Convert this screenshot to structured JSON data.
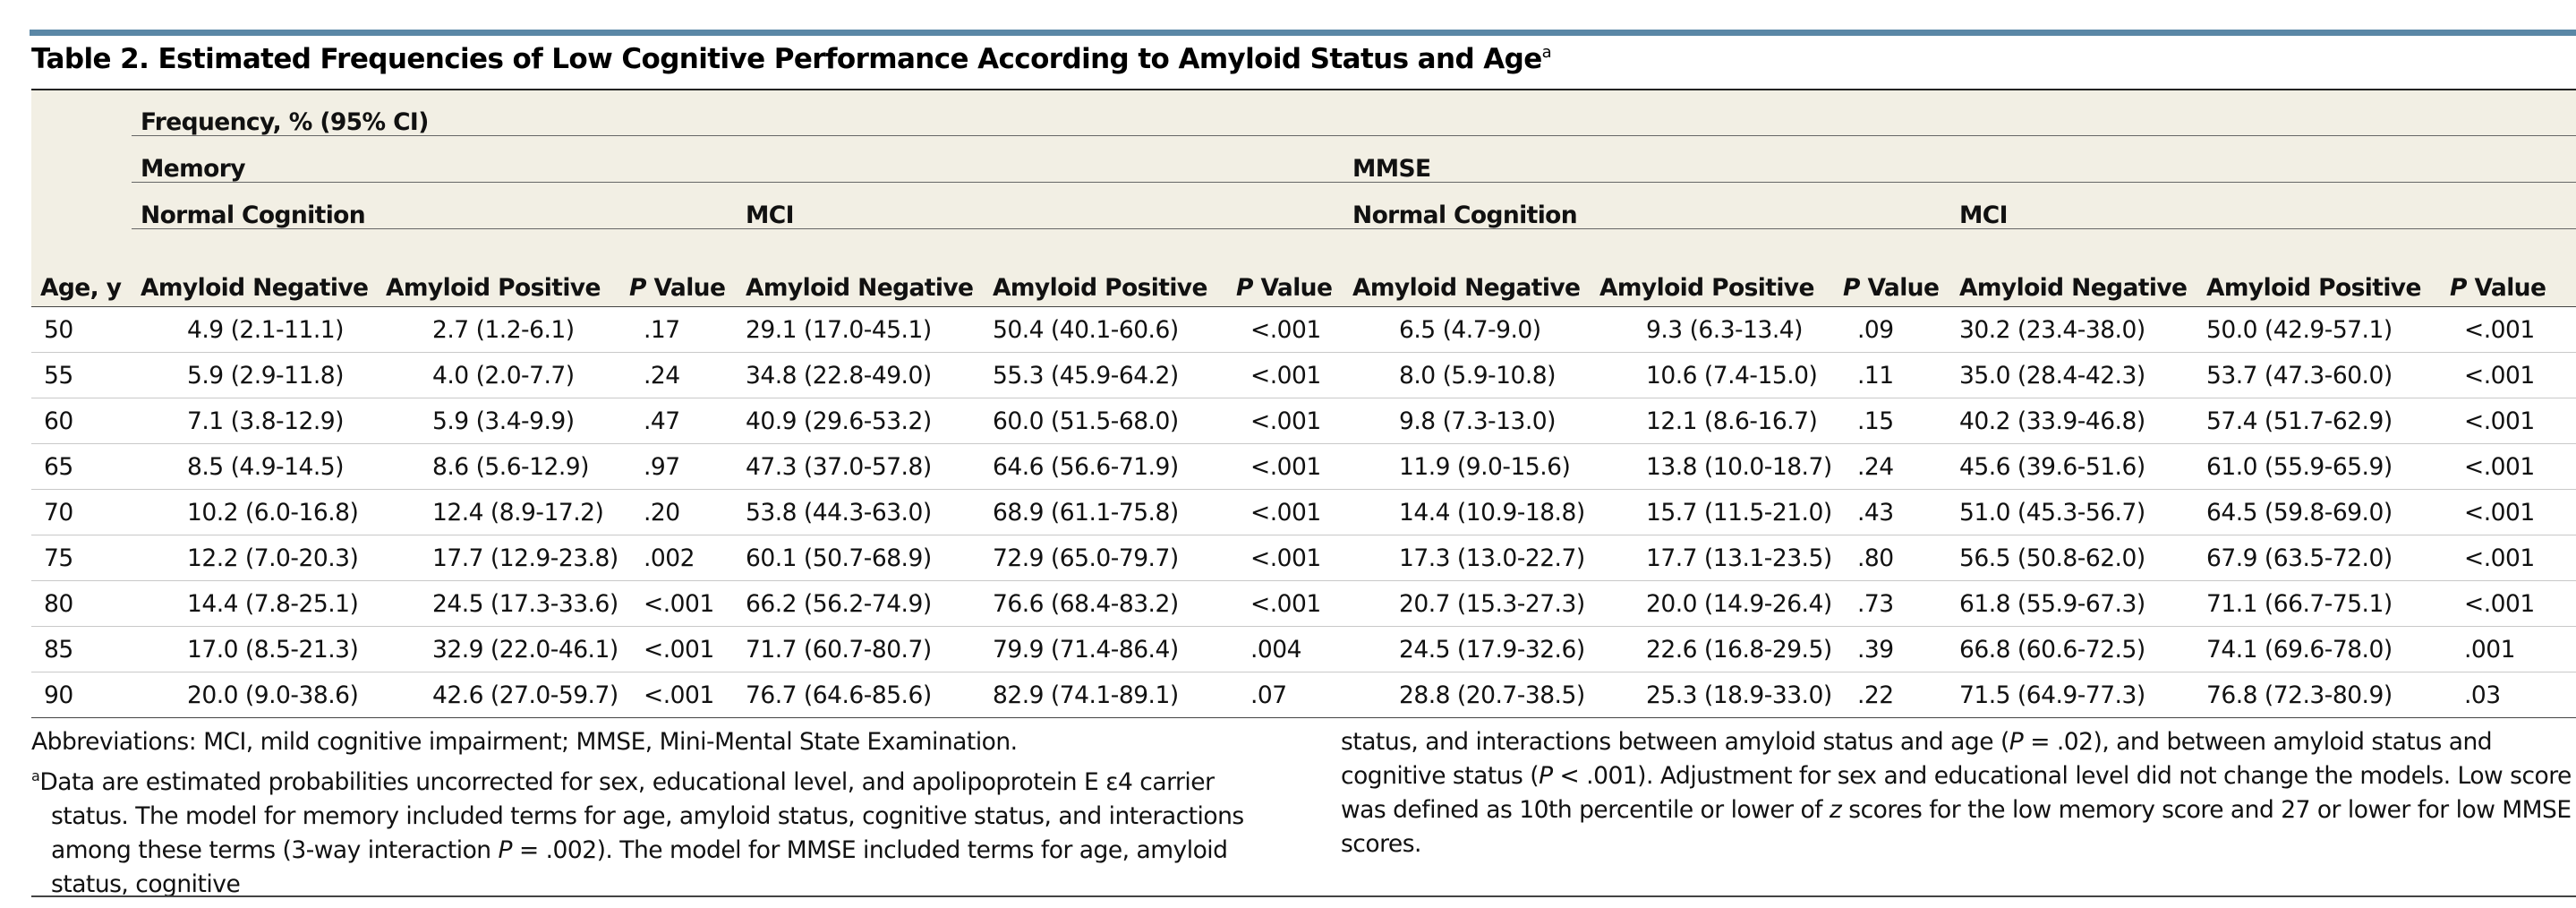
{
  "title": "Table 2. Estimated Frequencies of Low Cognitive Performance According to Amyloid Status and Age",
  "title_marker": "a",
  "header": {
    "age": "Age, y",
    "frequency": "Frequency, % (95% CI)",
    "memory": "Memory",
    "mmse": "MMSE",
    "normal_cognition": "Normal Cognition",
    "mci": "MCI",
    "amyloid_negative": "Amyloid Negative",
    "amyloid_positive": "Amyloid Positive",
    "p_value_italic": "P",
    "p_value_rest": " Value"
  },
  "rows": [
    {
      "age": "50",
      "c": [
        "4.9 (2.1-11.1)",
        "2.7 (1.2-6.1)",
        ".17",
        "29.1 (17.0-45.1)",
        "50.4 (40.1-60.6)",
        "<.001",
        "6.5 (4.7-9.0)",
        "9.3 (6.3-13.4)",
        ".09",
        "30.2 (23.4-38.0)",
        "50.0 (42.9-57.1)",
        "<.001"
      ]
    },
    {
      "age": "55",
      "c": [
        "5.9 (2.9-11.8)",
        "4.0 (2.0-7.7)",
        ".24",
        "34.8 (22.8-49.0)",
        "55.3 (45.9-64.2)",
        "<.001",
        "8.0 (5.9-10.8)",
        "10.6 (7.4-15.0)",
        ".11",
        "35.0 (28.4-42.3)",
        "53.7 (47.3-60.0)",
        "<.001"
      ]
    },
    {
      "age": "60",
      "c": [
        "7.1 (3.8-12.9)",
        "5.9 (3.4-9.9)",
        ".47",
        "40.9 (29.6-53.2)",
        "60.0 (51.5-68.0)",
        "<.001",
        "9.8 (7.3-13.0)",
        "12.1 (8.6-16.7)",
        ".15",
        "40.2 (33.9-46.8)",
        "57.4 (51.7-62.9)",
        "<.001"
      ]
    },
    {
      "age": "65",
      "c": [
        "8.5 (4.9-14.5)",
        "8.6 (5.6-12.9)",
        ".97",
        "47.3 (37.0-57.8)",
        "64.6 (56.6-71.9)",
        "<.001",
        "11.9 (9.0-15.6)",
        "13.8 (10.0-18.7)",
        ".24",
        "45.6 (39.6-51.6)",
        "61.0 (55.9-65.9)",
        "<.001"
      ]
    },
    {
      "age": "70",
      "c": [
        "10.2 (6.0-16.8)",
        "12.4 (8.9-17.2)",
        ".20",
        "53.8 (44.3-63.0)",
        "68.9 (61.1-75.8)",
        "<.001",
        "14.4 (10.9-18.8)",
        "15.7 (11.5-21.0)",
        ".43",
        "51.0 (45.3-56.7)",
        "64.5 (59.8-69.0)",
        "<.001"
      ]
    },
    {
      "age": "75",
      "c": [
        "12.2 (7.0-20.3)",
        "17.7 (12.9-23.8)",
        ".002",
        "60.1 (50.7-68.9)",
        "72.9 (65.0-79.7)",
        "<.001",
        "17.3 (13.0-22.7)",
        "17.7 (13.1-23.5)",
        ".80",
        "56.5 (50.8-62.0)",
        "67.9 (63.5-72.0)",
        "<.001"
      ]
    },
    {
      "age": "80",
      "c": [
        "14.4 (7.8-25.1)",
        "24.5 (17.3-33.6)",
        "<.001",
        "66.2 (56.2-74.9)",
        "76.6 (68.4-83.2)",
        "<.001",
        "20.7 (15.3-27.3)",
        "20.0 (14.9-26.4)",
        ".73",
        "61.8 (55.9-67.3)",
        "71.1 (66.7-75.1)",
        "<.001"
      ]
    },
    {
      "age": "85",
      "c": [
        "17.0 (8.5-21.3)",
        "32.9 (22.0-46.1)",
        "<.001",
        "71.7 (60.7-80.7)",
        "79.9 (71.4-86.4)",
        ".004",
        "24.5 (17.9-32.6)",
        "22.6 (16.8-29.5)",
        ".39",
        "66.8 (60.6-72.5)",
        "74.1 (69.6-78.0)",
        ".001"
      ]
    },
    {
      "age": "90",
      "c": [
        "20.0 (9.0-38.6)",
        "42.6 (27.0-59.7)",
        "<.001",
        "76.7 (64.6-85.6)",
        "82.9 (74.1-89.1)",
        ".07",
        "28.8 (20.7-38.5)",
        "25.3 (18.9-33.0)",
        ".22",
        "71.5 (64.9-77.3)",
        "76.8 (72.3-80.9)",
        ".03"
      ]
    }
  ],
  "footnotes": {
    "abbreviations": "Abbreviations: MCI, mild cognitive impairment; MMSE, Mini-Mental State Examination.",
    "fn_marker": "a",
    "fn_a_part1": "Data are estimated probabilities uncorrected for sex, educational level, and apolipoprotein E ε4 carrier status. The model for memory included terms for age, amyloid status, cognitive status, and interactions among these terms (3-way interaction ",
    "fn_a_part2": " = .002). The model for MMSE included terms for age, amyloid status, cognitive",
    "fn_b_part1": "status, and interactions between amyloid status and age (",
    "fn_b_part2": " = .02), and between amyloid status and cognitive status (",
    "fn_b_part3": " < .001). Adjustment for sex and educational level did not change the models. Low score was defined as 10th percentile or lower of ",
    "fn_b_z": "z",
    "fn_b_part4": " scores for the low memory score and 27 or lower for low MMSE scores.",
    "p": "P"
  },
  "colors": {
    "top_bar": "#5a87a6",
    "header_bg": "#f2efe4"
  }
}
